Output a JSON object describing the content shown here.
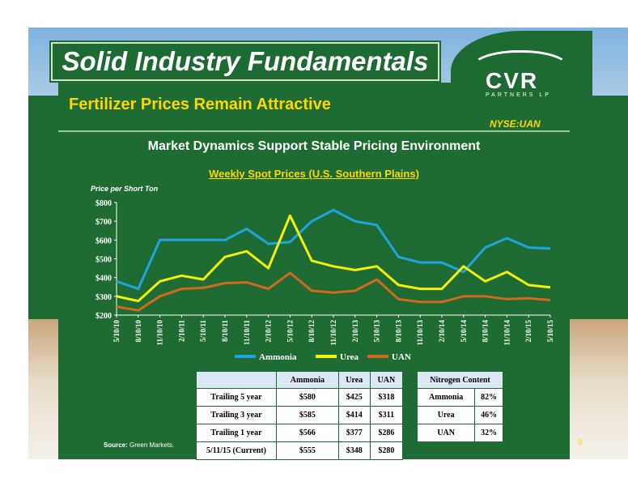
{
  "slide": {
    "title": "Solid Industry Fundamentals",
    "subtitle": "Fertilizer Prices Remain Attractive",
    "ticker": "NYSE:UAN",
    "logo_text": "CVR",
    "logo_subtext": "PARTNERS LP",
    "heading": "Market Dynamics Support Stable Pricing Environment",
    "source_label": "Source:",
    "source_text": "Green Markets.",
    "page_number": "9"
  },
  "colors": {
    "ammonia": "#1ea5df",
    "urea": "#f2f20a",
    "uan": "#d2691e"
  },
  "chart_data": {
    "type": "line",
    "title": "Weekly Spot Prices (U.S. Southern Plains)",
    "ylabel": "Price per Short Ton",
    "ylim": [
      200,
      800
    ],
    "y_ticks": [
      "$200",
      "$300",
      "$400",
      "$500",
      "$600",
      "$700",
      "$800"
    ],
    "x_ticks": [
      "5/10/10",
      "8/10/10",
      "11/10/10",
      "2/10/11",
      "5/10/11",
      "8/10/11",
      "11/10/11",
      "2/10/12",
      "5/10/12",
      "8/10/12",
      "11/10/12",
      "2/10/13",
      "5/10/13",
      "8/10/13",
      "11/10/13",
      "2/10/14",
      "5/10/14",
      "8/10/14",
      "11/10/14",
      "2/10/15",
      "5/10/15"
    ],
    "legend_position": "bottom",
    "series": [
      {
        "name": "Ammonia",
        "x": [
          0,
          1,
          2,
          3,
          4,
          5,
          6,
          7,
          8,
          9,
          10,
          11,
          12,
          13,
          14,
          15,
          16,
          17,
          18,
          19,
          20
        ],
        "values": [
          380,
          340,
          600,
          600,
          600,
          600,
          660,
          580,
          590,
          700,
          760,
          700,
          680,
          510,
          480,
          480,
          430,
          560,
          610,
          560,
          555
        ]
      },
      {
        "name": "Urea",
        "x": [
          0,
          1,
          2,
          3,
          4,
          5,
          6,
          7,
          8,
          9,
          10,
          11,
          12,
          13,
          14,
          15,
          16,
          17,
          18,
          19,
          20
        ],
        "values": [
          300,
          275,
          380,
          410,
          390,
          510,
          540,
          450,
          730,
          490,
          460,
          440,
          460,
          360,
          340,
          340,
          460,
          380,
          430,
          360,
          348
        ]
      },
      {
        "name": "UAN",
        "x": [
          0,
          1,
          2,
          3,
          4,
          5,
          6,
          7,
          8,
          9,
          10,
          11,
          12,
          13,
          14,
          15,
          16,
          17,
          18,
          19,
          20
        ],
        "values": [
          245,
          225,
          300,
          340,
          345,
          370,
          375,
          340,
          425,
          330,
          320,
          330,
          390,
          285,
          270,
          270,
          300,
          300,
          285,
          290,
          280
        ]
      }
    ]
  },
  "price_table": {
    "headers": [
      "",
      "Ammonia",
      "Urea",
      "UAN"
    ],
    "rows": [
      [
        "Trailing 5 year",
        "$580",
        "$425",
        "$318"
      ],
      [
        "Trailing 3 year",
        "$585",
        "$414",
        "$311"
      ],
      [
        "Trailing 1 year",
        "$566",
        "$377",
        "$286"
      ],
      [
        "5/11/15 (Current)",
        "$555",
        "$348",
        "$280"
      ]
    ]
  },
  "nitrogen_table": {
    "header": "Nitrogen Content",
    "rows": [
      [
        "Ammonia",
        "82%"
      ],
      [
        "Urea",
        "46%"
      ],
      [
        "UAN",
        "32%"
      ]
    ]
  }
}
